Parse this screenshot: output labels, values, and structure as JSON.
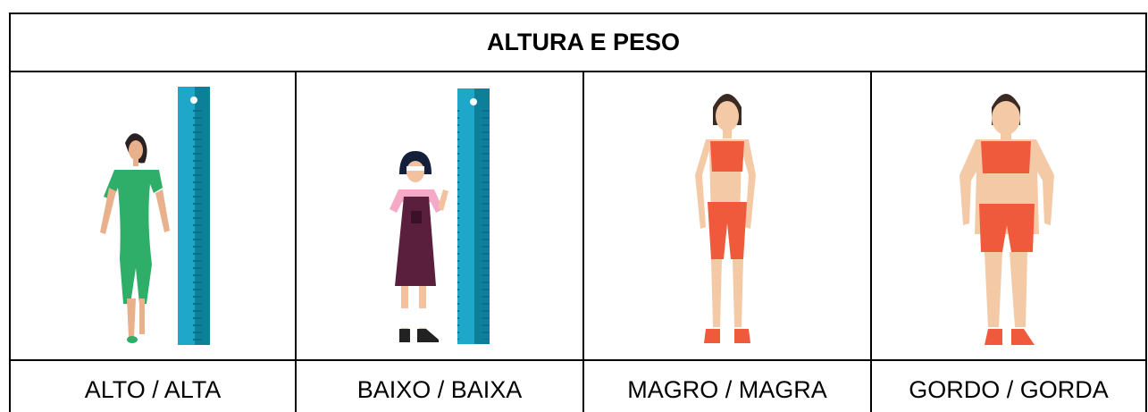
{
  "header": {
    "title": "ALTURA E PESO"
  },
  "cells": [
    {
      "label": "ALTO / ALTA"
    },
    {
      "label": "BAIXO / BAIXA"
    },
    {
      "label": "MAGRO / MAGRA"
    },
    {
      "label": "GORDO / GORDA"
    }
  ]
}
